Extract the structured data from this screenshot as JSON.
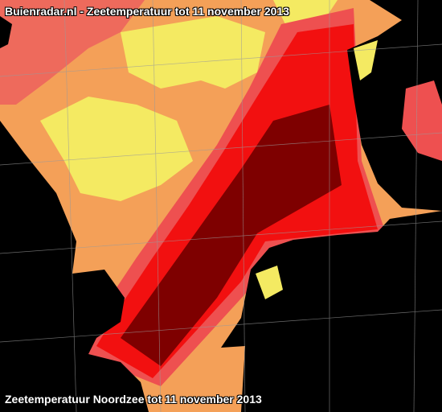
{
  "header": {
    "title": "Buienradar.nl - Zeetemperatuur tot 11 november 2013"
  },
  "footer": {
    "caption": "Zeetemperatuur Noordzee tot 11 november 2013"
  }
}
